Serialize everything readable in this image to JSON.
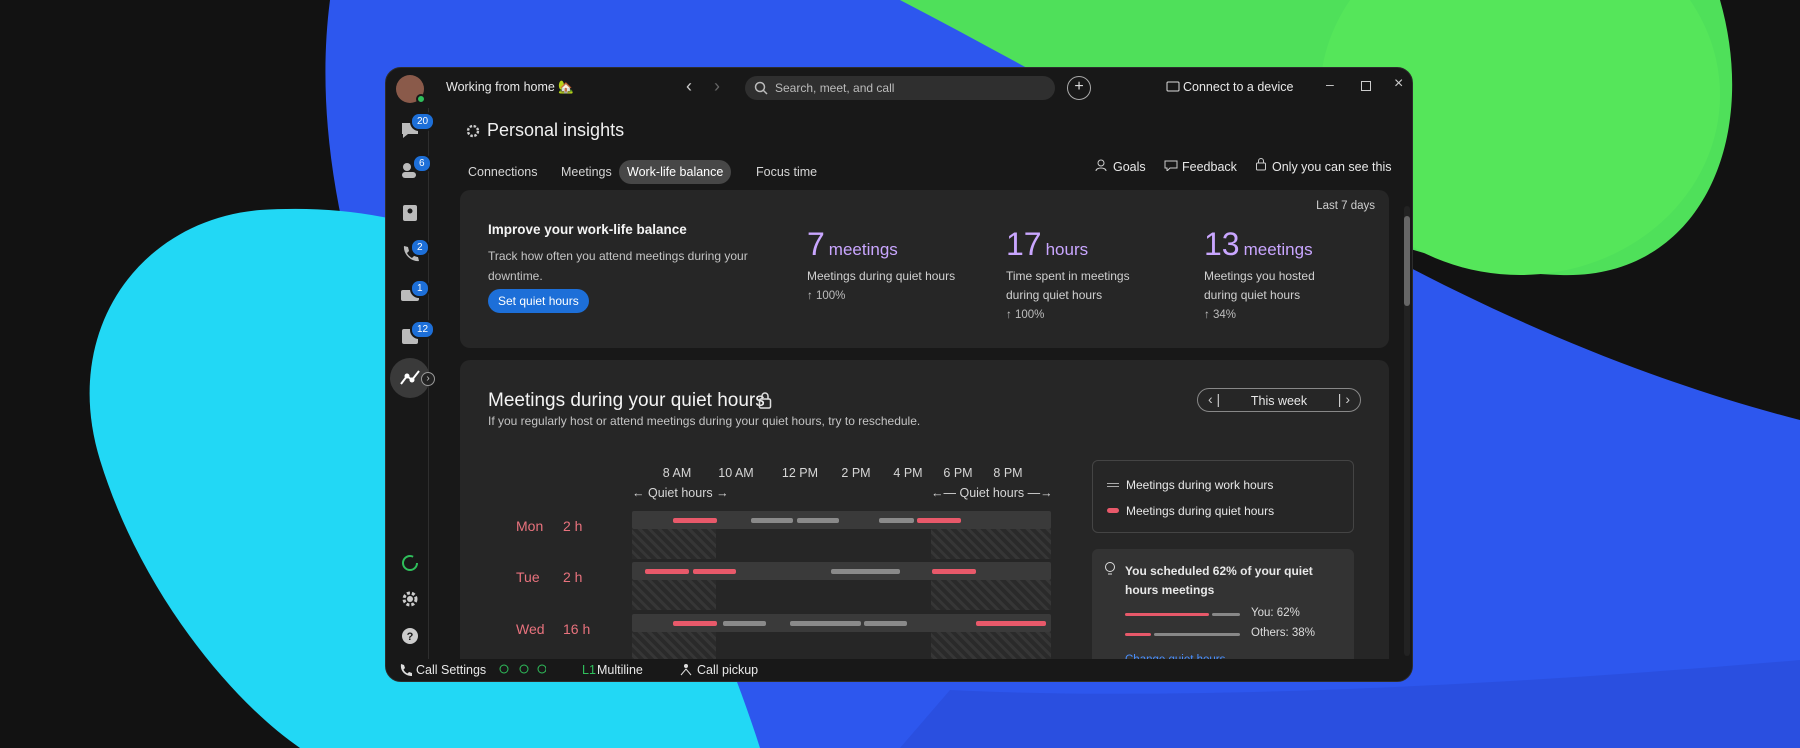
{
  "header": {
    "status": "Working from home 🏡",
    "search": "Search, meet, and call",
    "connect": "Connect to a device"
  },
  "sidebar": {
    "badges": [
      "20",
      "6",
      "2",
      "1",
      "12"
    ]
  },
  "page": {
    "title": "Personal insights",
    "tabs": [
      "Connections",
      "Meetings",
      "Work-life balance",
      "Focus time"
    ],
    "active_tab": 2,
    "actions": [
      "Goals",
      "Feedback",
      "Only you can see this"
    ]
  },
  "summary": {
    "period": "Last 7 days",
    "heading": "Improve your work-life balance",
    "description": "Track how often you attend meetings during your downtime.",
    "button": "Set quiet hours",
    "stats": [
      {
        "value": "7",
        "unit": "meetings",
        "label": "Meetings during quiet hours",
        "change": "↑ 100%"
      },
      {
        "value": "17",
        "unit": "hours",
        "label": "Time spent in meetings during quiet hours",
        "change": "↑ 100%"
      },
      {
        "value": "13",
        "unit": "meetings",
        "label": "Meetings you hosted during quiet hours",
        "change": "↑ 34%"
      }
    ]
  },
  "section": {
    "title": "Meetings during your quiet hours",
    "subtitle": "If you regularly host or attend meetings during your quiet hours, try to reschedule.",
    "period": "This week",
    "time_labels": [
      "8 AM",
      "10 AM",
      "12 PM",
      "2 PM",
      "4 PM",
      "6 PM",
      "8 PM"
    ],
    "quiet_label": "Quiet hours",
    "days": [
      {
        "day": "Mon",
        "hours": "2 h"
      },
      {
        "day": "Tue",
        "hours": "2 h"
      },
      {
        "day": "Wed",
        "hours": "16 h"
      }
    ],
    "legend": [
      "Meetings during work hours",
      "Meetings during quiet hours"
    ],
    "insight": {
      "text": "You scheduled 62% of your quiet hours meetings",
      "you": "You: 62%",
      "others": "Others: 38%",
      "link": "Change quiet hours"
    }
  },
  "footer": {
    "call_settings": "Call Settings",
    "line": "L1",
    "multiline": "Multiline",
    "pickup": "Call pickup"
  }
}
